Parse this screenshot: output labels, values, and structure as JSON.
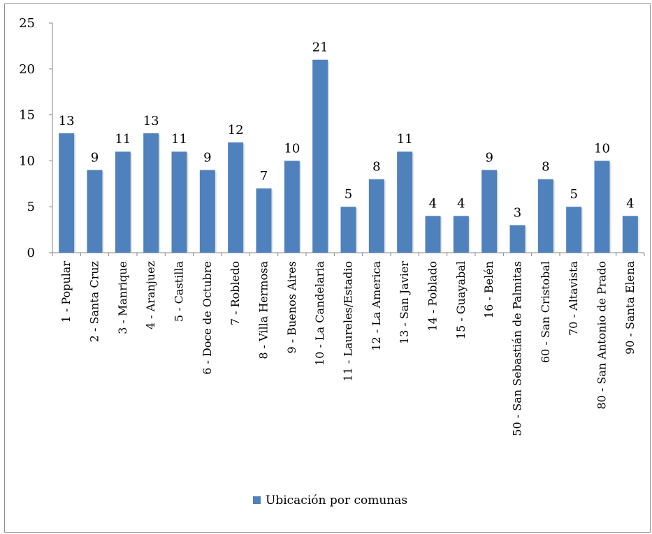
{
  "chart_data": {
    "type": "bar",
    "title": "",
    "xlabel": "",
    "ylabel": "",
    "ylim": [
      0,
      25
    ],
    "yticks": [
      0,
      5,
      10,
      15,
      20,
      25
    ],
    "grid": false,
    "legend_position": "bottom",
    "bar_color": "#4f81bd",
    "categories": [
      "1 - Popular",
      "2 - Santa Cruz",
      "3 - Manrique",
      "4 - Aranjuez",
      "5 - Castilla",
      "6 - Doce de Octubre",
      "7 - Robledo",
      "8 - Villa Hermosa",
      "9 - Buenos Aires",
      "10 - La Candelaria",
      "11 - Laureles/Estadio",
      "12 - La America",
      "13 - San Javier",
      "14 - Poblado",
      "15 - Guayabal",
      "16 - Belén",
      "50 - San Sebastián de  Palmitas",
      "60 - San Cristobal",
      "70 - Altavista",
      "80 - San Antonio de Prado",
      "90 - Santa Elena"
    ],
    "series": [
      {
        "name": "Ubicación por comunas",
        "values": [
          13,
          9,
          11,
          13,
          11,
          9,
          12,
          7,
          10,
          21,
          5,
          8,
          11,
          4,
          4,
          9,
          3,
          8,
          5,
          10,
          4
        ]
      }
    ]
  }
}
